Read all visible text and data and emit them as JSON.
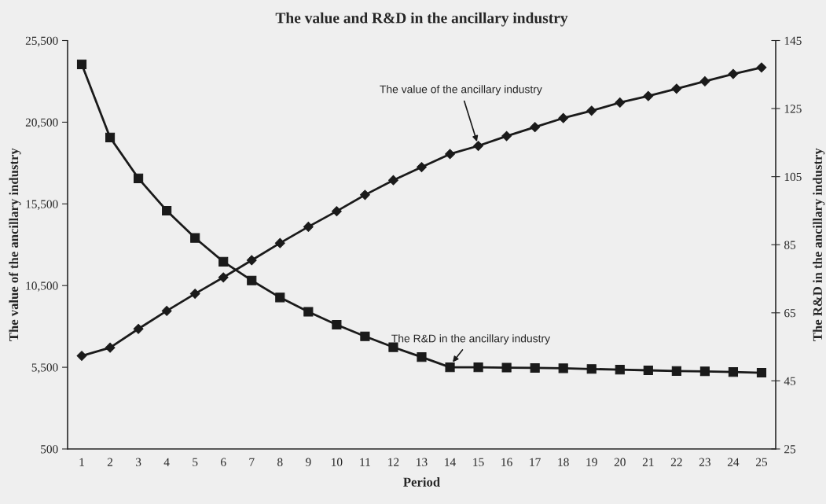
{
  "chart_data": {
    "type": "line",
    "title": "The value and R&D in the ancillary industry",
    "xlabel": "Period",
    "ylabel": "The value of the ancillary industry",
    "y2label": "The R&D in the ancillary industry",
    "categories": [
      "1",
      "2",
      "3",
      "4",
      "5",
      "6",
      "7",
      "8",
      "9",
      "10",
      "11",
      "12",
      "13",
      "14",
      "15",
      "16",
      "17",
      "18",
      "19",
      "20",
      "21",
      "22",
      "23",
      "24",
      "25"
    ],
    "series": [
      {
        "color": "#1a1a1a",
        "marker": "diamond",
        "values": [
          6200,
          6700,
          7850,
          8950,
          10000,
          11000,
          12050,
          13100,
          14100,
          15050,
          16050,
          16950,
          17750,
          18550,
          19050,
          19650,
          20200,
          20750,
          21200,
          21700,
          22100,
          22550,
          23000,
          23450,
          23850
        ]
      },
      {
        "color": "#1a1a1a",
        "marker": "square",
        "axis": "y2",
        "values": [
          138,
          116.5,
          104.5,
          95,
          87,
          80,
          74.5,
          69.5,
          65.3,
          61.5,
          58.1,
          54.9,
          52,
          49,
          49,
          48.9,
          48.8,
          48.7,
          48.5,
          48.3,
          48.1,
          47.9,
          47.8,
          47.6,
          47.4
        ]
      }
    ],
    "ylim": [
      500,
      25500
    ],
    "yticks": [
      {
        "value": 500,
        "label": "500"
      },
      {
        "value": 5500,
        "label": "5,500"
      },
      {
        "value": 10500,
        "label": "10,500"
      },
      {
        "value": 15500,
        "label": "15,500"
      },
      {
        "value": 20500,
        "label": "20,500"
      },
      {
        "value": 25500,
        "label": "25,500"
      }
    ],
    "y2lim": [
      25,
      145
    ],
    "y2ticks": [
      25,
      45,
      65,
      85,
      105,
      125,
      145
    ],
    "annotations": [
      {
        "text": "The value of the ancillary industry",
        "x": "15",
        "y": 19050
      },
      {
        "text": "The R&D in the ancillary industry",
        "x": "14",
        "y": 5600
      }
    ],
    "grid": false,
    "legend": false,
    "line_style": "solid"
  }
}
